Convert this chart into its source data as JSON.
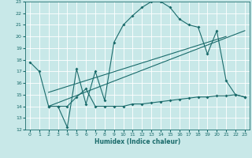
{
  "xlabel": "Humidex (Indice chaleur)",
  "xlim": [
    -0.5,
    23.5
  ],
  "ylim": [
    12,
    23
  ],
  "xticks": [
    0,
    1,
    2,
    3,
    4,
    5,
    6,
    7,
    8,
    9,
    10,
    11,
    12,
    13,
    14,
    15,
    16,
    17,
    18,
    19,
    20,
    21,
    22,
    23
  ],
  "yticks": [
    12,
    13,
    14,
    15,
    16,
    17,
    18,
    19,
    20,
    21,
    22,
    23
  ],
  "bg_color": "#c8e8e8",
  "line_color": "#1a6b6b",
  "grid_color": "#ffffff",
  "curve1_x": [
    0,
    1,
    2,
    3,
    4,
    5,
    6,
    7,
    8,
    9,
    10,
    11,
    12,
    13,
    14,
    15,
    16,
    17,
    18,
    19,
    20,
    21,
    22,
    23
  ],
  "curve1_y": [
    17.8,
    17.0,
    14.0,
    14.0,
    12.2,
    17.2,
    14.2,
    17.0,
    14.5,
    19.5,
    21.0,
    21.8,
    22.5,
    23.0,
    23.0,
    22.5,
    21.5,
    21.0,
    20.8,
    18.5,
    20.5,
    16.2,
    15.0,
    14.8
  ],
  "curve2_x": [
    2,
    3,
    4,
    5,
    6,
    7,
    8,
    9,
    10,
    11,
    12,
    13,
    14,
    15,
    16,
    17,
    18,
    19,
    20,
    21,
    22,
    23
  ],
  "curve2_y": [
    14.0,
    14.0,
    14.0,
    14.8,
    15.5,
    14.0,
    14.0,
    14.0,
    14.0,
    14.2,
    14.2,
    14.3,
    14.4,
    14.5,
    14.6,
    14.7,
    14.8,
    14.8,
    14.9,
    14.9,
    15.0,
    14.8
  ],
  "line3_x": [
    2,
    23
  ],
  "line3_y": [
    14.0,
    20.5
  ],
  "line4_x": [
    2,
    21
  ],
  "line4_y": [
    15.2,
    20.0
  ]
}
